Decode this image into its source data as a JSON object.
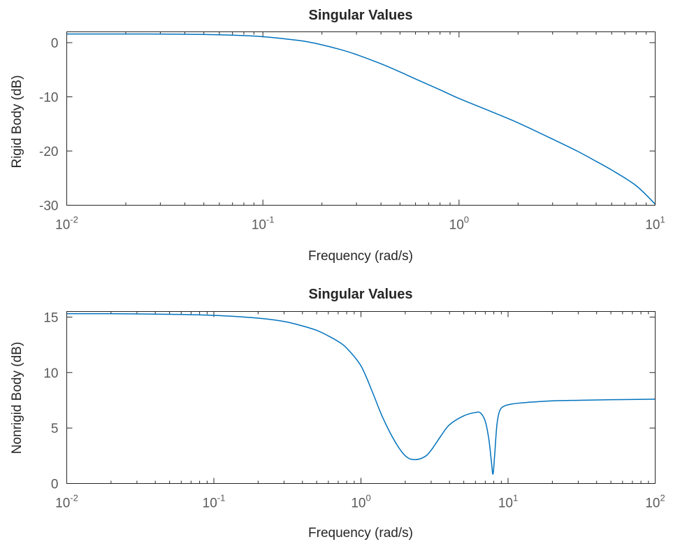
{
  "chart_data": [
    {
      "type": "line",
      "title": "Singular Values",
      "xlabel": "Frequency (rad/s)",
      "ylabel": "Rigid Body (dB)",
      "xscale": "log",
      "xlim": [
        0.01,
        10
      ],
      "ylim": [
        -30,
        2
      ],
      "grid": false,
      "x_ticks": [
        {
          "base": "10",
          "exp": "-2",
          "value": 0.01
        },
        {
          "base": "10",
          "exp": "-1",
          "value": 0.1
        },
        {
          "base": "10",
          "exp": "0",
          "value": 1
        },
        {
          "base": "10",
          "exp": "1",
          "value": 10
        }
      ],
      "y_ticks": [
        "0",
        "-10",
        "-20",
        "-30"
      ],
      "y_tick_values": [
        0,
        -10,
        -20,
        -30
      ],
      "series": [
        {
          "color": "#0072bd",
          "x": [
            0.01,
            0.02,
            0.04,
            0.06,
            0.08,
            0.1,
            0.13,
            0.16,
            0.2,
            0.25,
            0.3,
            0.4,
            0.5,
            0.6,
            0.8,
            1,
            1.5,
            2,
            3,
            4,
            5,
            6,
            8,
            10
          ],
          "y": [
            1.6,
            1.6,
            1.55,
            1.45,
            1.3,
            1.1,
            0.7,
            0.3,
            -0.4,
            -1.3,
            -2.2,
            -3.9,
            -5.4,
            -6.7,
            -8.7,
            -10.3,
            -12.9,
            -14.8,
            -17.8,
            -20.0,
            -21.9,
            -23.5,
            -26.4,
            -29.8
          ]
        }
      ]
    },
    {
      "type": "line",
      "title": "Singular Values",
      "xlabel": "Frequency (rad/s)",
      "ylabel": "Nonrigid Body (dB)",
      "xscale": "log",
      "xlim": [
        0.01,
        100
      ],
      "ylim": [
        0,
        15.5
      ],
      "grid": false,
      "x_ticks": [
        {
          "base": "10",
          "exp": "-2",
          "value": 0.01
        },
        {
          "base": "10",
          "exp": "-1",
          "value": 0.1
        },
        {
          "base": "10",
          "exp": "0",
          "value": 1
        },
        {
          "base": "10",
          "exp": "1",
          "value": 10
        },
        {
          "base": "10",
          "exp": "2",
          "value": 100
        }
      ],
      "y_ticks": [
        "15",
        "10",
        "5",
        "0"
      ],
      "y_tick_values": [
        15,
        10,
        5,
        0
      ],
      "series": [
        {
          "color": "#0072bd",
          "x": [
            0.01,
            0.02,
            0.05,
            0.1,
            0.2,
            0.3,
            0.4,
            0.5,
            0.6,
            0.7,
            0.8,
            1,
            1.2,
            1.4,
            1.7,
            2,
            2.3,
            2.7,
            3,
            3.5,
            4,
            5,
            6,
            6.5,
            7,
            7.4,
            7.7,
            7.9,
            8.1,
            8.4,
            8.8,
            9.5,
            10.5,
            12,
            15,
            20,
            30,
            50,
            100
          ],
          "y": [
            15.3,
            15.3,
            15.25,
            15.15,
            14.9,
            14.6,
            14.2,
            13.8,
            13.3,
            12.8,
            12.2,
            10.6,
            8.2,
            6.0,
            3.8,
            2.5,
            2.15,
            2.4,
            3.0,
            4.3,
            5.3,
            6.1,
            6.4,
            6.35,
            5.6,
            4.0,
            2.0,
            0.85,
            2.5,
            5.3,
            6.6,
            7.0,
            7.15,
            7.25,
            7.35,
            7.45,
            7.5,
            7.55,
            7.6
          ]
        }
      ]
    }
  ]
}
